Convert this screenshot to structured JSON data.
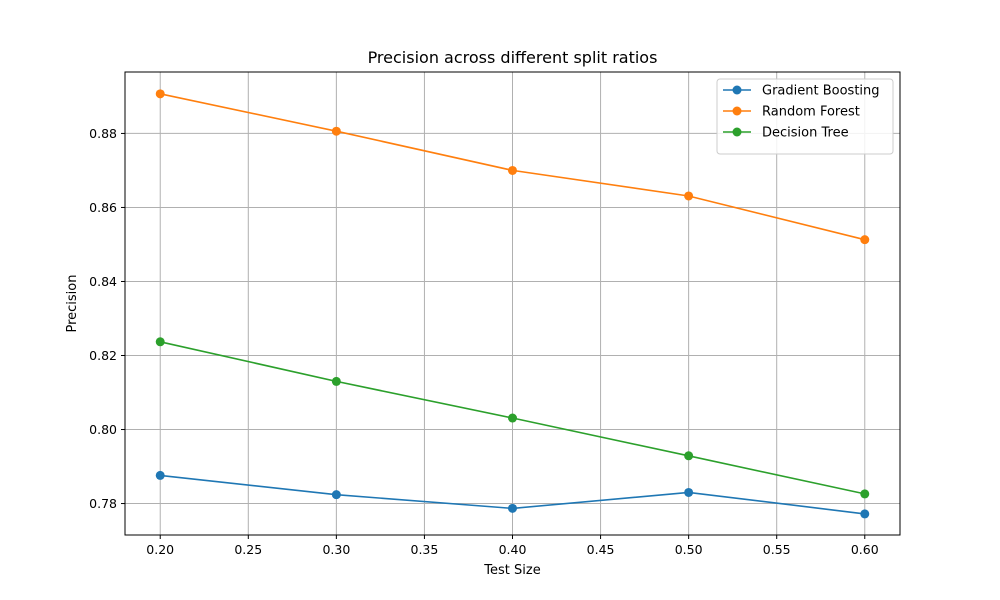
{
  "chart_data": {
    "type": "line",
    "title": "Precision across different split ratios",
    "xlabel": "Test Size",
    "ylabel": "Precision",
    "x": [
      0.2,
      0.3,
      0.4,
      0.5,
      0.6
    ],
    "xlim": [
      0.18,
      0.62
    ],
    "ylim": [
      0.7715,
      0.8966
    ],
    "xticks": [
      0.2,
      0.25,
      0.3,
      0.35,
      0.4,
      0.45,
      0.5,
      0.55,
      0.6
    ],
    "xtick_labels": [
      "0.20",
      "0.25",
      "0.30",
      "0.35",
      "0.40",
      "0.45",
      "0.50",
      "0.55",
      "0.60"
    ],
    "yticks": [
      0.78,
      0.8,
      0.82,
      0.84,
      0.86,
      0.88
    ],
    "ytick_labels": [
      "0.78",
      "0.80",
      "0.82",
      "0.84",
      "0.86",
      "0.88"
    ],
    "grid": true,
    "legend_position": "top-right",
    "series": [
      {
        "name": "Gradient Boosting",
        "color": "#1f77b4",
        "marker": "circle",
        "values": [
          0.7876,
          0.7824,
          0.7787,
          0.783,
          0.7772
        ]
      },
      {
        "name": "Random Forest",
        "color": "#ff7f0e",
        "marker": "circle",
        "values": [
          0.8907,
          0.8806,
          0.87,
          0.8631,
          0.8513
        ]
      },
      {
        "name": "Decision Tree",
        "color": "#2ca02c",
        "marker": "circle",
        "values": [
          0.8237,
          0.813,
          0.8031,
          0.7929,
          0.7826
        ]
      }
    ]
  }
}
